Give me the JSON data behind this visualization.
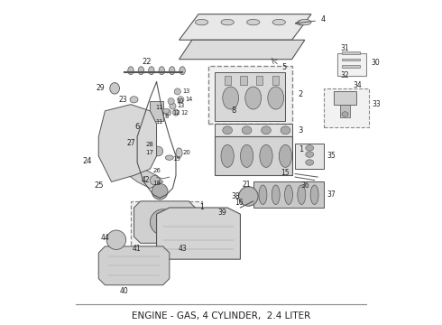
{
  "title": "ENGINE - GAS, 4 CYLINDER,  2.4 LITER",
  "title_fontsize": 7.5,
  "bg_color": "#ffffff",
  "line_color": "#555555",
  "text_color": "#222222",
  "border_color": "#888888"
}
